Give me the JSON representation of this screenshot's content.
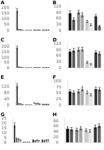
{
  "chart_data": [
    {
      "type": "bar",
      "title": "A",
      "categories": [
        null,
        null,
        null,
        null
      ],
      "series": [
        {
          "values": [
            175,
            0.5,
            4,
            3
          ],
          "colors": [
            "#111111",
            "#111111",
            "#111111",
            "#111111"
          ],
          "errors": [
            18,
            0.1,
            0.8,
            0.6
          ]
        },
        {
          "values": [
            8,
            0.3,
            2,
            2
          ],
          "colors": [
            "#555555",
            "#555555",
            "#555555",
            "#555555"
          ],
          "errors": [
            1.5,
            0.05,
            0.4,
            0.4
          ]
        },
        {
          "values": [
            6,
            0.5,
            3,
            3
          ],
          "colors": [
            "#999999",
            "#999999",
            "#999999",
            "#999999"
          ],
          "errors": [
            1,
            0.1,
            0.5,
            0.5
          ]
        },
        {
          "values": [
            3,
            0.3,
            3,
            4
          ],
          "colors": [
            "#cccccc",
            "#cccccc",
            "#cccccc",
            "#cccccc"
          ],
          "errors": [
            0.5,
            0.05,
            0.5,
            0.7
          ]
        }
      ],
      "ylim": [
        0,
        210
      ],
      "yticks": [
        0,
        50,
        100,
        150,
        200
      ],
      "grid": false,
      "tick_labels": "y"
    },
    {
      "type": "bar",
      "title": "B",
      "categories": [
        null,
        null,
        null,
        null
      ],
      "series": [
        {
          "values": [
            88,
            92,
            45,
            72
          ],
          "colors": [
            "#111111",
            "#888888",
            "#cccccc",
            "#333333"
          ],
          "errors": [
            10,
            9,
            6,
            8
          ]
        },
        {
          "values": [
            55,
            78,
            28,
            22
          ],
          "colors": [
            "#555555",
            "#aaaaaa",
            "#e8e8e8",
            "#666666"
          ],
          "errors": [
            8,
            10,
            5,
            4
          ]
        }
      ],
      "ylim": [
        0,
        120
      ],
      "yticks": [
        0,
        30,
        60,
        90,
        120
      ],
      "grid": false,
      "tick_labels": "y"
    },
    {
      "type": "bar",
      "title": "C",
      "categories": [
        null,
        null,
        null,
        null
      ],
      "series": [
        {
          "values": [
            195,
            0.3,
            2,
            2
          ],
          "colors": [
            "#111111",
            "#111111",
            "#111111",
            "#111111"
          ],
          "errors": [
            14,
            0.05,
            0.4,
            0.4
          ]
        },
        {
          "values": [
            7,
            0.2,
            1,
            1
          ],
          "colors": [
            "#555555",
            "#555555",
            "#555555",
            "#555555"
          ],
          "errors": [
            1.5,
            0.04,
            0.2,
            0.2
          ]
        },
        {
          "values": [
            5,
            0.3,
            2,
            2
          ],
          "colors": [
            "#999999",
            "#999999",
            "#999999",
            "#999999"
          ],
          "errors": [
            1,
            0.05,
            0.3,
            0.3
          ]
        },
        {
          "values": [
            2,
            0.2,
            1.5,
            1.5
          ],
          "colors": [
            "#cccccc",
            "#cccccc",
            "#cccccc",
            "#cccccc"
          ],
          "errors": [
            0.4,
            0.04,
            0.3,
            0.3
          ]
        }
      ],
      "ylim": [
        0,
        230
      ],
      "yticks": [
        0,
        50,
        100,
        150,
        200
      ],
      "grid": false,
      "tick_labels": "y"
    },
    {
      "type": "bar",
      "title": "D",
      "categories": [
        null,
        null,
        null,
        null
      ],
      "series": [
        {
          "values": [
            82,
            92,
            28,
            78
          ],
          "colors": [
            "#111111",
            "#888888",
            "#cccccc",
            "#333333"
          ],
          "errors": [
            10,
            9,
            5,
            8
          ]
        },
        {
          "values": [
            88,
            93,
            18,
            72
          ],
          "colors": [
            "#555555",
            "#aaaaaa",
            "#e8e8e8",
            "#666666"
          ],
          "errors": [
            9,
            9,
            4,
            8
          ]
        }
      ],
      "ylim": [
        0,
        120
      ],
      "yticks": [
        0,
        30,
        60,
        90,
        120
      ],
      "grid": false,
      "tick_labels": "y"
    },
    {
      "type": "bar",
      "title": "E",
      "categories": [
        null,
        null,
        null,
        null
      ],
      "series": [
        {
          "values": [
            125,
            0.5,
            14,
            5
          ],
          "colors": [
            "#111111",
            "#111111",
            "#ffffff",
            "#111111"
          ],
          "errors": [
            14,
            0.1,
            2.5,
            0.9
          ]
        },
        {
          "values": [
            9,
            0.2,
            9,
            3.5
          ],
          "colors": [
            "#555555",
            "#555555",
            "#cccccc",
            "#555555"
          ],
          "errors": [
            1.8,
            0.04,
            1.8,
            0.7
          ]
        },
        {
          "values": [
            7,
            0.3,
            11,
            4.5
          ],
          "colors": [
            "#999999",
            "#999999",
            "#aaaaaa",
            "#999999"
          ],
          "errors": [
            1.3,
            0.05,
            2,
            0.8
          ]
        },
        {
          "values": [
            4,
            0.2,
            7,
            4.5
          ],
          "colors": [
            "#cccccc",
            "#cccccc",
            "#888888",
            "#cccccc"
          ],
          "errors": [
            0.8,
            0.04,
            1.4,
            0.8
          ]
        }
      ],
      "ylim": [
        0,
        155
      ],
      "yticks": [
        0,
        40,
        80,
        120
      ],
      "grid": false,
      "tick_labels": "y"
    },
    {
      "type": "bar",
      "title": "F",
      "categories": [
        null,
        null,
        null,
        null
      ],
      "series": [
        {
          "values": [
            58,
            58,
            53,
            68
          ],
          "colors": [
            "#111111",
            "#888888",
            "#cccccc",
            "#333333"
          ],
          "errors": [
            7,
            7,
            6,
            7
          ]
        },
        {
          "values": [
            53,
            68,
            43,
            66
          ],
          "colors": [
            "#555555",
            "#aaaaaa",
            "#e8e8e8",
            "#666666"
          ],
          "errors": [
            6,
            8,
            5,
            7
          ]
        }
      ],
      "ylim": [
        0,
        100
      ],
      "yticks": [
        0,
        25,
        50,
        75,
        100
      ],
      "grid": false,
      "tick_labels": "y"
    },
    {
      "type": "bar",
      "title": "G",
      "categories": [
        null,
        null,
        null,
        null
      ],
      "series": [
        {
          "values": [
            18,
            0.2,
            2.5,
            2.5
          ],
          "colors": [
            "#111111",
            "#111111",
            "#111111",
            "#111111"
          ],
          "errors": [
            2.5,
            0.04,
            0.4,
            0.4
          ]
        },
        {
          "values": [
            4,
            0.1,
            1.8,
            1.8
          ],
          "colors": [
            "#555555",
            "#555555",
            "#555555",
            "#555555"
          ],
          "errors": [
            0.8,
            0.02,
            0.3,
            0.35
          ]
        },
        {
          "values": [
            3.5,
            0.2,
            2.5,
            2.5
          ],
          "colors": [
            "#999999",
            "#999999",
            "#999999",
            "#999999"
          ],
          "errors": [
            0.7,
            0.04,
            0.4,
            0.4
          ]
        },
        {
          "values": [
            2.5,
            0.1,
            1.8,
            2.5
          ],
          "colors": [
            "#cccccc",
            "#cccccc",
            "#cccccc",
            "#cccccc"
          ],
          "errors": [
            0.5,
            0.02,
            0.3,
            0.4
          ]
        }
      ],
      "ylim": [
        0,
        25
      ],
      "yticks": [
        0,
        5,
        10,
        15,
        20,
        25
      ],
      "grid": false,
      "tick_labels": "y"
    },
    {
      "type": "bar",
      "title": "H",
      "categories": [
        null,
        null,
        null,
        null
      ],
      "series": [
        {
          "values": [
            52,
            48,
            46,
            58
          ],
          "colors": [
            "#111111",
            "#888888",
            "#cccccc",
            "#333333"
          ],
          "errors": [
            6,
            6,
            5,
            7
          ]
        },
        {
          "values": [
            50,
            53,
            43,
            63
          ],
          "colors": [
            "#555555",
            "#aaaaaa",
            "#e8e8e8",
            "#666666"
          ],
          "errors": [
            6,
            6,
            5,
            7
          ]
        }
      ],
      "ylim": [
        0,
        90
      ],
      "yticks": [
        0,
        20,
        40,
        60,
        80
      ],
      "grid": false,
      "tick_labels": "y"
    }
  ]
}
